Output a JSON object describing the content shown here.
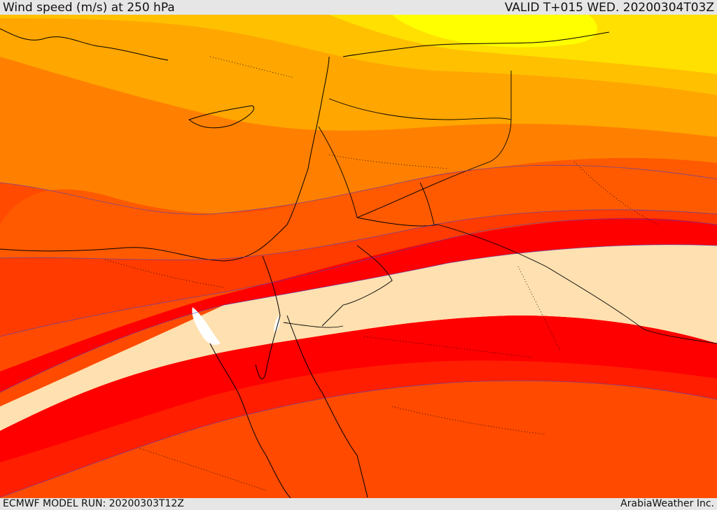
{
  "header": {
    "title": "Wind speed (m/s) at 250 hPa",
    "valid": "VALID T+015 WED. 20200304T03Z"
  },
  "footer": {
    "model_run": "ECMWF MODEL RUN: 20200303T12Z",
    "credit": "ArabiaWeather Inc."
  },
  "map": {
    "field": "wind-speed-250hPa",
    "bands": [
      {
        "name": "band-light-yellow",
        "color": "#ffff00"
      },
      {
        "name": "band-yellow",
        "color": "#ffe000"
      },
      {
        "name": "band-gold",
        "color": "#ffc000"
      },
      {
        "name": "band-orange-light",
        "color": "#ffa600"
      },
      {
        "name": "band-orange",
        "color": "#ff8000"
      },
      {
        "name": "band-orange-red",
        "color": "#ff5a00"
      },
      {
        "name": "band-red-orange",
        "color": "#ff3b00"
      },
      {
        "name": "band-red",
        "color": "#ff0000"
      },
      {
        "name": "band-jet-core",
        "color": "#ffe0b0"
      },
      {
        "name": "band-red-lower",
        "color": "#ff1e00"
      },
      {
        "name": "band-orange-red-lower",
        "color": "#ff4a00"
      }
    ],
    "land_color": "#000000",
    "missing_color": "#ffffff"
  }
}
